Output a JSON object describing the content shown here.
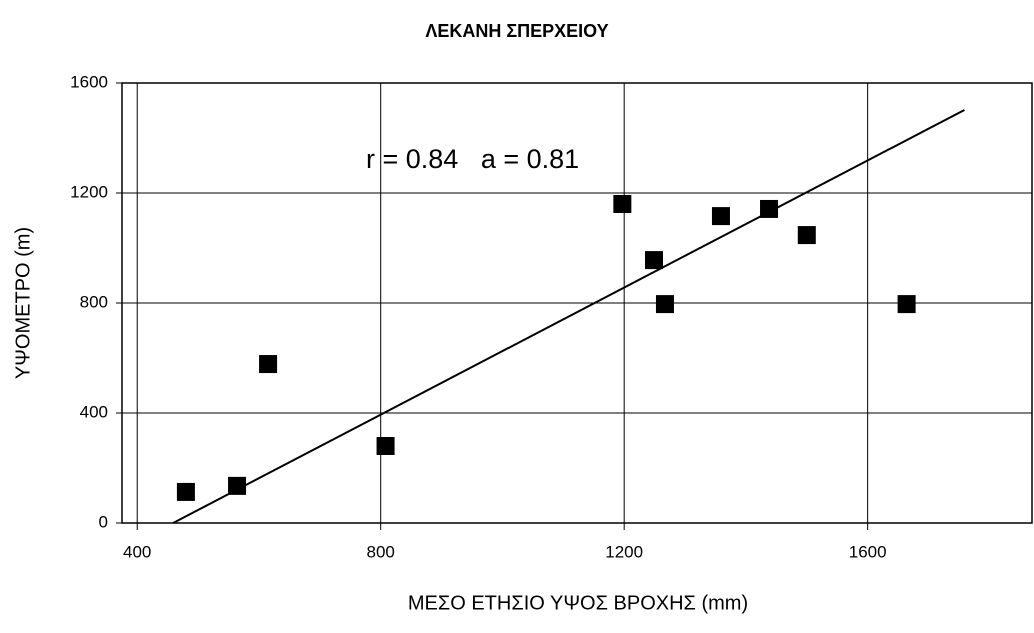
{
  "chart_data": {
    "type": "scatter",
    "title": "ΛΕΚΑΝΗ ΣΠΕΡΧΕΙΟΥ",
    "x_label": "ΜΕΣΟ ΕΤΗΣΙΟ ΥΨΟΣ ΒΡΟΧΗΣ (mm)",
    "y_label": "ΥΨΟΜΕΤΡΟ (m)",
    "annotation": "r = 0.84   a = 0.81",
    "x": [
      480,
      564,
      615,
      808,
      1197,
      1249,
      1267,
      1359,
      1438,
      1500,
      1664
    ],
    "values": [
      113,
      135,
      578,
      280,
      1160,
      956,
      796,
      1116,
      1142,
      1047,
      796
    ],
    "color": "#000000",
    "fit_line": {
      "x": [
        459,
        1759
      ],
      "y": [
        0,
        1502
      ]
    },
    "xlim": [
      375,
      1870
    ],
    "xticks": [
      400,
      800,
      1200,
      1600
    ],
    "ylim": [
      0,
      1600
    ],
    "yticks": [
      0,
      400,
      800,
      1200,
      1600
    ],
    "grid": true
  }
}
